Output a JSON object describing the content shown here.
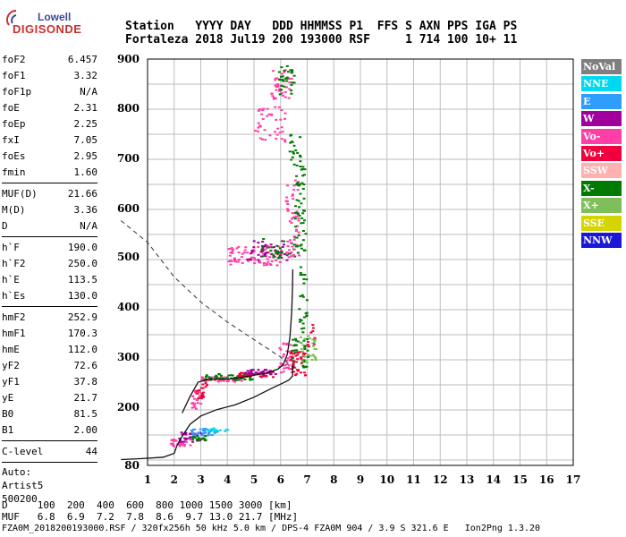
{
  "logo": {
    "line1": "Lowell",
    "line2": "DIGISONDE"
  },
  "header": {
    "row1": "Station   YYYY DAY   DDD HHMMSS P1  FFS S AXN PPS IGA PS",
    "row2": "Fortaleza 2018 Jul19 200 193000 RSF     1 714 100 10+ 11"
  },
  "params": {
    "group1": [
      {
        "k": "foF2",
        "v": "6.457"
      },
      {
        "k": "foF1",
        "v": "3.32"
      },
      {
        "k": "foF1p",
        "v": "N/A"
      },
      {
        "k": "foE",
        "v": "2.31"
      },
      {
        "k": "foEp",
        "v": "2.25"
      },
      {
        "k": "fxI",
        "v": "7.05"
      },
      {
        "k": "foEs",
        "v": "2.95"
      },
      {
        "k": "fmin",
        "v": "1.60"
      }
    ],
    "group2": [
      {
        "k": "MUF(D)",
        "v": "21.66"
      },
      {
        "k": "M(D)",
        "v": "3.36"
      },
      {
        "k": "D",
        "v": "N/A"
      }
    ],
    "group3": [
      {
        "k": "h`F",
        "v": "190.0"
      },
      {
        "k": "h`F2",
        "v": "250.0"
      },
      {
        "k": "h`E",
        "v": "113.5"
      },
      {
        "k": "h`Es",
        "v": "130.0"
      }
    ],
    "group4": [
      {
        "k": "hmF2",
        "v": "252.9"
      },
      {
        "k": "hmF1",
        "v": "170.3"
      },
      {
        "k": "hmE",
        "v": "112.0"
      },
      {
        "k": "yF2",
        "v": "72.6"
      },
      {
        "k": "yF1",
        "v": "37.8"
      },
      {
        "k": "yE",
        "v": "21.7"
      },
      {
        "k": "B0",
        "v": "81.5"
      },
      {
        "k": "B1",
        "v": "2.00"
      }
    ],
    "group5": [
      {
        "k": "C-level",
        "v": "44"
      }
    ],
    "auto": [
      "Auto:",
      "Artist5",
      "500200"
    ]
  },
  "legend": [
    {
      "label": "NoVal",
      "color": "#7f7f7f"
    },
    {
      "label": "NNE",
      "color": "#00d8f0"
    },
    {
      "label": "E",
      "color": "#2f9cff"
    },
    {
      "label": "W",
      "color": "#a0009b"
    },
    {
      "label": "Vo-",
      "color": "#ff3fa8"
    },
    {
      "label": "Vo+",
      "color": "#f0003c"
    },
    {
      "label": "SSW",
      "color": "#ffb0b0"
    },
    {
      "label": "X-",
      "color": "#007a00"
    },
    {
      "label": "X+",
      "color": "#7fbf5a"
    },
    {
      "label": "SSE",
      "color": "#d4d400"
    },
    {
      "label": "NNW",
      "color": "#1c16d8"
    }
  ],
  "chart_data": {
    "type": "scatter",
    "xlabel": "",
    "ylabel": "",
    "xlim": [
      1,
      17
    ],
    "ylim": [
      80,
      900
    ],
    "x_ticks": [
      "1",
      "2",
      "3",
      "4",
      "5",
      "6",
      "7",
      "8",
      "9",
      "10",
      "11",
      "12",
      "13",
      "14",
      "15",
      "16",
      "17"
    ],
    "y_ticks": [
      "80",
      "200",
      "300",
      "400",
      "500",
      "600",
      "700",
      "800",
      "900"
    ],
    "ordinary_trace": [
      [
        2.3,
        188
      ],
      [
        2.6,
        222
      ],
      [
        2.9,
        250
      ],
      [
        3.3,
        256
      ],
      [
        4.0,
        256
      ],
      [
        4.6,
        260
      ],
      [
        5.0,
        264
      ],
      [
        5.5,
        268
      ],
      [
        5.9,
        276
      ],
      [
        6.1,
        285
      ],
      [
        6.25,
        305
      ],
      [
        6.35,
        340
      ],
      [
        6.42,
        390
      ],
      [
        6.45,
        440
      ],
      [
        6.46,
        475
      ]
    ],
    "profile_trace": [
      [
        0.0,
        92
      ],
      [
        0.8,
        94
      ],
      [
        1.6,
        97
      ],
      [
        2.0,
        105
      ],
      [
        2.1,
        120
      ],
      [
        2.3,
        140
      ],
      [
        2.6,
        165
      ],
      [
        3.0,
        182
      ],
      [
        3.6,
        195
      ],
      [
        4.3,
        205
      ],
      [
        5.0,
        220
      ],
      [
        5.6,
        236
      ],
      [
        6.0,
        246
      ],
      [
        6.3,
        254
      ],
      [
        6.45,
        262
      ],
      [
        6.46,
        285
      ]
    ],
    "dashed_trace": [
      [
        0.0,
        575
      ],
      [
        1.0,
        530
      ],
      [
        2.0,
        460
      ],
      [
        3.0,
        410
      ],
      [
        4.0,
        370
      ],
      [
        5.0,
        335
      ],
      [
        6.0,
        300
      ],
      [
        6.5,
        278
      ]
    ]
  },
  "footer": {
    "distance_row": "D     100  200  400  600  800 1000 1500 3000 [km]",
    "muf_row": "MUF   6.8  6.9  7.2  7.8  8.6  9.7 13.0 21.7 [MHz]",
    "info_row": "FZA0M_2018200193000.RSF / 320fx256h 50 kHz 5.0 km / DPS-4 FZA0M 904 / 3.9 S 321.6 E   Ion2Png 1.3.20"
  }
}
